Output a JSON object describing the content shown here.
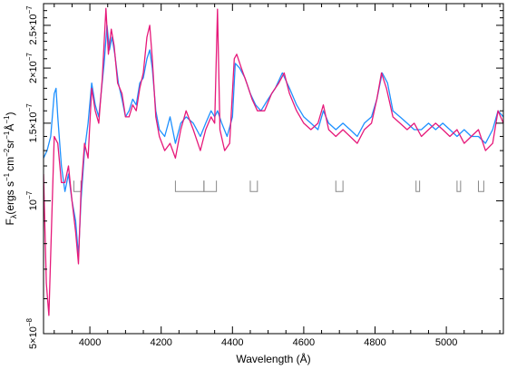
{
  "chart_data": {
    "type": "line",
    "xlabel": "Wavelength (Å)",
    "ylabel": "F",
    "ylabel_sub": "λ",
    "ylabel_units_open": "(ergs s",
    "ylabel_cm": "cm",
    "ylabel_sr": "sr",
    "ylabel_A": "Å",
    "ylabel_close": ")",
    "ylabel_exp1": "−1",
    "ylabel_exp2": "−2",
    "ylabel_exp3": "−1",
    "ylabel_exp4": "−1",
    "xlim": [
      3870,
      5160
    ],
    "ylim": [
      5e-08,
      2.8e-07
    ],
    "x_ticks": [
      {
        "value": 4000,
        "label": "4000"
      },
      {
        "value": 4200,
        "label": "4200"
      },
      {
        "value": 4400,
        "label": "4400"
      },
      {
        "value": 4600,
        "label": "4600"
      },
      {
        "value": 4800,
        "label": "4800"
      },
      {
        "value": 5000,
        "label": "5000"
      }
    ],
    "y_ticks": [
      {
        "value": 5e-08,
        "mantissa": "5×10",
        "exp": "−8"
      },
      {
        "value": 1e-07,
        "mantissa": "10",
        "exp": "−7"
      },
      {
        "value": 1.5e-07,
        "mantissa": "1.5×10",
        "exp": "−7"
      },
      {
        "value": 2e-07,
        "mantissa": "2×10",
        "exp": "−7"
      },
      {
        "value": 2.5e-07,
        "mantissa": "2.5×10",
        "exp": "−7"
      }
    ],
    "grid": false,
    "series": [
      {
        "color": "#1e90ff",
        "points": [
          [
            3870,
            1.25e-07
          ],
          [
            3880,
            1.3e-07
          ],
          [
            3890,
            1.4e-07
          ],
          [
            3900,
            1.75e-07
          ],
          [
            3905,
            1.8e-07
          ],
          [
            3910,
            1.55e-07
          ],
          [
            3920,
            1.2e-07
          ],
          [
            3930,
            1.05e-07
          ],
          [
            3940,
            1.15e-07
          ],
          [
            3950,
            1e-07
          ],
          [
            3960,
            9e-08
          ],
          [
            3968,
            7.5e-08
          ],
          [
            3975,
            1e-07
          ],
          [
            3985,
            1.3e-07
          ],
          [
            3995,
            1.5e-07
          ],
          [
            4005,
            1.85e-07
          ],
          [
            4015,
            1.65e-07
          ],
          [
            4025,
            1.55e-07
          ],
          [
            4040,
            2.05e-07
          ],
          [
            4048,
            2.5e-07
          ],
          [
            4055,
            2.2e-07
          ],
          [
            4062,
            2.35e-07
          ],
          [
            4070,
            2.15e-07
          ],
          [
            4080,
            1.85e-07
          ],
          [
            4090,
            1.7e-07
          ],
          [
            4100,
            1.55e-07
          ],
          [
            4110,
            1.6e-07
          ],
          [
            4120,
            1.7e-07
          ],
          [
            4130,
            1.65e-07
          ],
          [
            4140,
            1.85e-07
          ],
          [
            4150,
            1.9e-07
          ],
          [
            4160,
            2.1e-07
          ],
          [
            4168,
            2.2e-07
          ],
          [
            4175,
            2e-07
          ],
          [
            4185,
            1.6e-07
          ],
          [
            4195,
            1.45e-07
          ],
          [
            4210,
            1.4e-07
          ],
          [
            4225,
            1.55e-07
          ],
          [
            4240,
            1.35e-07
          ],
          [
            4255,
            1.5e-07
          ],
          [
            4270,
            1.55e-07
          ],
          [
            4290,
            1.5e-07
          ],
          [
            4310,
            1.4e-07
          ],
          [
            4325,
            1.5e-07
          ],
          [
            4340,
            1.6e-07
          ],
          [
            4350,
            1.55e-07
          ],
          [
            4358,
            1.6e-07
          ],
          [
            4370,
            1.5e-07
          ],
          [
            4385,
            1.4e-07
          ],
          [
            4400,
            1.55e-07
          ],
          [
            4408,
            2.05e-07
          ],
          [
            4420,
            2e-07
          ],
          [
            4435,
            1.9e-07
          ],
          [
            4450,
            1.75e-07
          ],
          [
            4465,
            1.65e-07
          ],
          [
            4480,
            1.6e-07
          ],
          [
            4500,
            1.7e-07
          ],
          [
            4520,
            1.8e-07
          ],
          [
            4540,
            1.95e-07
          ],
          [
            4560,
            1.8e-07
          ],
          [
            4580,
            1.65e-07
          ],
          [
            4600,
            1.55e-07
          ],
          [
            4620,
            1.5e-07
          ],
          [
            4640,
            1.45e-07
          ],
          [
            4655,
            1.6e-07
          ],
          [
            4670,
            1.5e-07
          ],
          [
            4690,
            1.45e-07
          ],
          [
            4710,
            1.5e-07
          ],
          [
            4730,
            1.45e-07
          ],
          [
            4750,
            1.4e-07
          ],
          [
            4770,
            1.5e-07
          ],
          [
            4790,
            1.55e-07
          ],
          [
            4805,
            1.7e-07
          ],
          [
            4820,
            1.95e-07
          ],
          [
            4835,
            1.85e-07
          ],
          [
            4850,
            1.6e-07
          ],
          [
            4870,
            1.55e-07
          ],
          [
            4890,
            1.5e-07
          ],
          [
            4910,
            1.45e-07
          ],
          [
            4930,
            1.45e-07
          ],
          [
            4950,
            1.5e-07
          ],
          [
            4970,
            1.45e-07
          ],
          [
            4990,
            1.5e-07
          ],
          [
            5010,
            1.45e-07
          ],
          [
            5030,
            1.4e-07
          ],
          [
            5050,
            1.45e-07
          ],
          [
            5070,
            1.4e-07
          ],
          [
            5090,
            1.4e-07
          ],
          [
            5110,
            1.35e-07
          ],
          [
            5130,
            1.45e-07
          ],
          [
            5145,
            1.6e-07
          ],
          [
            5160,
            1.55e-07
          ]
        ]
      },
      {
        "color": "#e6197a",
        "points": [
          [
            3870,
            1.15e-07
          ],
          [
            3878,
            6.5e-08
          ],
          [
            3885,
            5.5e-08
          ],
          [
            3893,
            9e-08
          ],
          [
            3900,
            1.4e-07
          ],
          [
            3910,
            1.35e-07
          ],
          [
            3920,
            1.1e-07
          ],
          [
            3930,
            1.1e-07
          ],
          [
            3940,
            1.2e-07
          ],
          [
            3950,
            1e-07
          ],
          [
            3960,
            8.5e-08
          ],
          [
            3968,
            7.2e-08
          ],
          [
            3975,
            1.05e-07
          ],
          [
            3985,
            1.35e-07
          ],
          [
            3995,
            1.25e-07
          ],
          [
            4005,
            1.8e-07
          ],
          [
            4015,
            1.6e-07
          ],
          [
            4025,
            1.5e-07
          ],
          [
            4035,
            1.9e-07
          ],
          [
            4045,
            2.73e-07
          ],
          [
            4052,
            2.15e-07
          ],
          [
            4060,
            2.45e-07
          ],
          [
            4068,
            2.25e-07
          ],
          [
            4078,
            1.85e-07
          ],
          [
            4090,
            1.75e-07
          ],
          [
            4100,
            1.55e-07
          ],
          [
            4110,
            1.55e-07
          ],
          [
            4120,
            1.65e-07
          ],
          [
            4130,
            1.6e-07
          ],
          [
            4140,
            1.8e-07
          ],
          [
            4150,
            1.95e-07
          ],
          [
            4160,
            2.35e-07
          ],
          [
            4168,
            2.5e-07
          ],
          [
            4175,
            2.1e-07
          ],
          [
            4185,
            1.55e-07
          ],
          [
            4195,
            1.4e-07
          ],
          [
            4210,
            1.3e-07
          ],
          [
            4225,
            1.35e-07
          ],
          [
            4240,
            1.25e-07
          ],
          [
            4255,
            1.45e-07
          ],
          [
            4270,
            1.6e-07
          ],
          [
            4290,
            1.45e-07
          ],
          [
            4310,
            1.3e-07
          ],
          [
            4325,
            1.45e-07
          ],
          [
            4340,
            1.55e-07
          ],
          [
            4350,
            1.5e-07
          ],
          [
            4358,
            2.72e-07
          ],
          [
            4365,
            1.45e-07
          ],
          [
            4378,
            1.3e-07
          ],
          [
            4392,
            1.35e-07
          ],
          [
            4405,
            2.1e-07
          ],
          [
            4412,
            2.15e-07
          ],
          [
            4425,
            2e-07
          ],
          [
            4440,
            1.85e-07
          ],
          [
            4455,
            1.7e-07
          ],
          [
            4470,
            1.6e-07
          ],
          [
            4490,
            1.6e-07
          ],
          [
            4510,
            1.75e-07
          ],
          [
            4530,
            1.85e-07
          ],
          [
            4545,
            1.95e-07
          ],
          [
            4560,
            1.75e-07
          ],
          [
            4580,
            1.6e-07
          ],
          [
            4600,
            1.5e-07
          ],
          [
            4620,
            1.45e-07
          ],
          [
            4640,
            1.5e-07
          ],
          [
            4655,
            1.65e-07
          ],
          [
            4670,
            1.45e-07
          ],
          [
            4690,
            1.4e-07
          ],
          [
            4710,
            1.45e-07
          ],
          [
            4730,
            1.4e-07
          ],
          [
            4750,
            1.35e-07
          ],
          [
            4770,
            1.45e-07
          ],
          [
            4790,
            1.5e-07
          ],
          [
            4805,
            1.7e-07
          ],
          [
            4818,
            1.95e-07
          ],
          [
            4832,
            1.8e-07
          ],
          [
            4850,
            1.55e-07
          ],
          [
            4870,
            1.5e-07
          ],
          [
            4890,
            1.45e-07
          ],
          [
            4910,
            1.5e-07
          ],
          [
            4930,
            1.4e-07
          ],
          [
            4950,
            1.45e-07
          ],
          [
            4970,
            1.5e-07
          ],
          [
            4990,
            1.45e-07
          ],
          [
            5010,
            1.4e-07
          ],
          [
            5030,
            1.45e-07
          ],
          [
            5050,
            1.35e-07
          ],
          [
            5070,
            1.4e-07
          ],
          [
            5090,
            1.45e-07
          ],
          [
            5110,
            1.3e-07
          ],
          [
            5130,
            1.35e-07
          ],
          [
            5145,
            1.6e-07
          ],
          [
            5160,
            1.5e-07
          ]
        ]
      }
    ],
    "line_markers": [
      {
        "x1": 3955,
        "x2": 3975,
        "y": 1.05e-07
      },
      {
        "x1": 4240,
        "x2": 4320,
        "y": 1.05e-07
      },
      {
        "x1": 4320,
        "x2": 4355,
        "y": 1.05e-07
      },
      {
        "x1": 4450,
        "x2": 4470,
        "y": 1.05e-07
      },
      {
        "x1": 4690,
        "x2": 4710,
        "y": 1.05e-07
      },
      {
        "x1": 4915,
        "x2": 4925,
        "y": 1.05e-07
      },
      {
        "x1": 5030,
        "x2": 5040,
        "y": 1.05e-07
      },
      {
        "x1": 5090,
        "x2": 5105,
        "y": 1.05e-07
      }
    ]
  }
}
